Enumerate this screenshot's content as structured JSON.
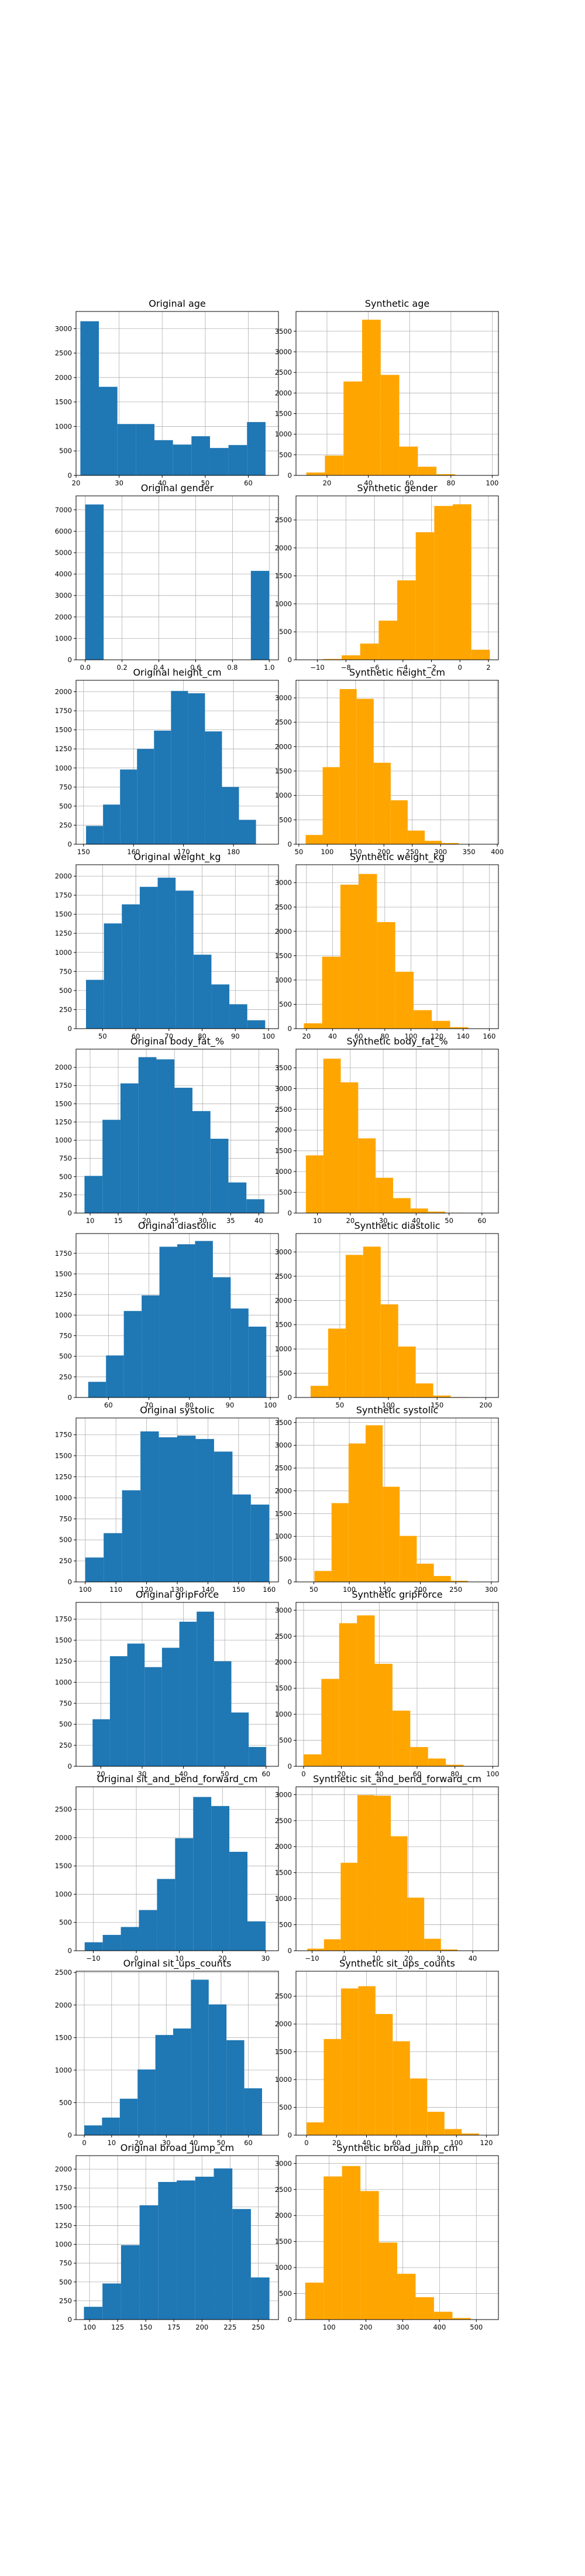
{
  "colors": {
    "original": "#1f77b4",
    "synthetic": "#ffa500"
  },
  "chart_data": [
    {
      "type": "bar",
      "title": "Original age",
      "color": "#1f77b4",
      "xlim": [
        20,
        67
      ],
      "ylim": [
        0,
        3350
      ],
      "xticks": [
        20,
        30,
        40,
        50,
        60
      ],
      "yticks": [
        0,
        500,
        1000,
        1500,
        2000,
        2500,
        3000
      ],
      "bin_edges": [
        21,
        25.3,
        29.6,
        33.9,
        38.2,
        42.5,
        46.8,
        51.1,
        55.4,
        59.7,
        64
      ],
      "values": [
        3150,
        1810,
        1050,
        1050,
        720,
        630,
        800,
        560,
        620,
        1090
      ]
    },
    {
      "type": "bar",
      "title": "Synthetic age",
      "color": "#ffa500",
      "xlim": [
        5,
        103
      ],
      "ylim": [
        0,
        3980
      ],
      "xticks": [
        20,
        40,
        60,
        80,
        100
      ],
      "yticks": [
        0,
        500,
        1000,
        1500,
        2000,
        2500,
        3000,
        3500
      ],
      "bin_edges": [
        10,
        19,
        28,
        37,
        46,
        55,
        64,
        73,
        82,
        91,
        100
      ],
      "values": [
        70,
        480,
        2280,
        3780,
        2440,
        700,
        210,
        30,
        5,
        2
      ]
    },
    {
      "type": "bar",
      "title": "Original gender",
      "color": "#1f77b4",
      "xlim": [
        -0.05,
        1.05
      ],
      "ylim": [
        0,
        7650
      ],
      "xticks": [
        0.0,
        0.2,
        0.4,
        0.6,
        0.8,
        1.0
      ],
      "yticks": [
        0,
        1000,
        2000,
        3000,
        4000,
        5000,
        6000,
        7000
      ],
      "bin_edges": [
        0,
        0.1,
        0.2,
        0.3,
        0.4,
        0.5,
        0.6,
        0.7,
        0.8,
        0.9,
        1.0
      ],
      "values": [
        7250,
        0,
        0,
        0,
        0,
        0,
        0,
        0,
        0,
        4150
      ]
    },
    {
      "type": "bar",
      "title": "Synthetic gender",
      "color": "#ffa500",
      "xlim": [
        -11.5,
        2.7
      ],
      "ylim": [
        0,
        2930
      ],
      "xticks": [
        -10,
        -8,
        -6,
        -4,
        -2,
        0,
        2
      ],
      "yticks": [
        0,
        500,
        1000,
        1500,
        2000,
        2500
      ],
      "bin_edges": [
        -10.9,
        -9.6,
        -8.3,
        -7.0,
        -5.7,
        -4.4,
        -3.1,
        -1.8,
        -0.5,
        0.8,
        2.1
      ],
      "values": [
        2,
        15,
        80,
        290,
        700,
        1420,
        2280,
        2750,
        2780,
        180
      ]
    },
    {
      "type": "bar",
      "title": "Original height_cm",
      "color": "#1f77b4",
      "xlim": [
        148.5,
        189
      ],
      "ylim": [
        0,
        2150
      ],
      "xticks": [
        150,
        160,
        170,
        180
      ],
      "yticks": [
        0,
        250,
        500,
        750,
        1000,
        1250,
        1500,
        1750,
        2000
      ],
      "bin_edges": [
        150.5,
        153.9,
        157.3,
        160.7,
        164.1,
        167.5,
        170.9,
        174.3,
        177.7,
        181.1,
        184.5
      ],
      "values": [
        240,
        520,
        980,
        1250,
        1490,
        2010,
        1980,
        1480,
        750,
        320
      ]
    },
    {
      "type": "bar",
      "title": "Synthetic height_cm",
      "color": "#ffa500",
      "xlim": [
        45,
        402
      ],
      "ylim": [
        0,
        3360
      ],
      "xticks": [
        50,
        100,
        150,
        200,
        250,
        300,
        350,
        400
      ],
      "yticks": [
        0,
        500,
        1000,
        1500,
        2000,
        2500,
        3000
      ],
      "bin_edges": [
        62,
        92,
        122,
        152,
        182,
        212,
        242,
        272,
        302,
        332,
        362
      ],
      "values": [
        190,
        1580,
        3180,
        2980,
        1670,
        900,
        280,
        70,
        25,
        5
      ]
    },
    {
      "type": "bar",
      "title": "Original weight_kg",
      "color": "#1f77b4",
      "xlim": [
        42,
        103
      ],
      "ylim": [
        0,
        2150
      ],
      "xticks": [
        50,
        60,
        70,
        80,
        90,
        100
      ],
      "yticks": [
        0,
        250,
        500,
        750,
        1000,
        1250,
        1500,
        1750,
        2000
      ],
      "bin_edges": [
        45,
        50.4,
        55.8,
        61.2,
        66.6,
        72,
        77.4,
        82.8,
        88.2,
        93.6,
        99
      ],
      "values": [
        640,
        1380,
        1630,
        1860,
        1980,
        1810,
        970,
        580,
        320,
        110
      ]
    },
    {
      "type": "bar",
      "title": "Synthetic weight_kg",
      "color": "#ffa500",
      "xlim": [
        12,
        167
      ],
      "ylim": [
        0,
        3370
      ],
      "xticks": [
        20,
        40,
        60,
        80,
        100,
        120,
        140,
        160
      ],
      "yticks": [
        0,
        500,
        1000,
        1500,
        2000,
        2500,
        3000
      ],
      "bin_edges": [
        18,
        32,
        46,
        60,
        74,
        88,
        102,
        116,
        130,
        144,
        158
      ],
      "values": [
        110,
        1480,
        2960,
        3180,
        2190,
        1170,
        380,
        160,
        30,
        4
      ]
    },
    {
      "type": "bar",
      "title": "Original body_fat_%",
      "color": "#1f77b4",
      "xlim": [
        7.5,
        43.5
      ],
      "ylim": [
        0,
        2250
      ],
      "xticks": [
        10,
        15,
        20,
        25,
        30,
        35,
        40
      ],
      "yticks": [
        0,
        250,
        500,
        750,
        1000,
        1250,
        1500,
        1750,
        2000
      ],
      "bin_edges": [
        9,
        12.2,
        15.4,
        18.6,
        21.8,
        25,
        28.2,
        31.4,
        34.6,
        37.8,
        41
      ],
      "values": [
        510,
        1280,
        1780,
        2140,
        2110,
        1720,
        1400,
        1020,
        420,
        190
      ]
    },
    {
      "type": "bar",
      "title": "Synthetic body_fat_%",
      "color": "#ffa500",
      "xlim": [
        3.5,
        65
      ],
      "ylim": [
        0,
        3950
      ],
      "xticks": [
        10,
        20,
        30,
        40,
        50,
        60
      ],
      "yticks": [
        0,
        500,
        1000,
        1500,
        2000,
        2500,
        3000,
        3500
      ],
      "bin_edges": [
        6.5,
        11.8,
        17.1,
        22.4,
        27.7,
        33,
        38.3,
        43.6,
        48.9,
        54.2,
        59.5
      ],
      "values": [
        1390,
        3720,
        3150,
        1800,
        850,
        360,
        110,
        35,
        8,
        2
      ]
    },
    {
      "type": "bar",
      "title": "Original diastolic",
      "color": "#1f77b4",
      "xlim": [
        52,
        102
      ],
      "ylim": [
        0,
        1990
      ],
      "xticks": [
        60,
        70,
        80,
        90,
        100
      ],
      "yticks": [
        0,
        250,
        500,
        750,
        1000,
        1250,
        1500,
        1750
      ],
      "bin_edges": [
        55,
        59.4,
        63.8,
        68.2,
        72.6,
        77,
        81.4,
        85.8,
        90.2,
        94.6,
        99
      ],
      "values": [
        190,
        510,
        1050,
        1240,
        1830,
        1860,
        1900,
        1460,
        1080,
        860
      ]
    },
    {
      "type": "bar",
      "title": "Synthetic diastolic",
      "color": "#ffa500",
      "xlim": [
        5,
        213
      ],
      "ylim": [
        0,
        3380
      ],
      "xticks": [
        50,
        100,
        150,
        200
      ],
      "yticks": [
        0,
        500,
        1000,
        1500,
        2000,
        2500,
        3000
      ],
      "bin_edges": [
        20,
        38,
        56,
        74,
        92,
        110,
        128,
        146,
        164,
        182,
        200
      ],
      "values": [
        240,
        1420,
        2940,
        3110,
        1920,
        1050,
        290,
        40,
        8,
        2
      ]
    },
    {
      "type": "bar",
      "title": "Original systolic",
      "color": "#1f77b4",
      "xlim": [
        97,
        163
      ],
      "ylim": [
        0,
        1950
      ],
      "xticks": [
        100,
        110,
        120,
        130,
        140,
        150,
        160
      ],
      "yticks": [
        0,
        250,
        500,
        750,
        1000,
        1250,
        1500,
        1750
      ],
      "bin_edges": [
        100,
        106,
        112,
        118,
        124,
        130,
        136,
        142,
        148,
        154,
        160
      ],
      "values": [
        290,
        580,
        1090,
        1790,
        1720,
        1740,
        1700,
        1550,
        1040,
        920
      ]
    },
    {
      "type": "bar",
      "title": "Synthetic systolic",
      "color": "#ffa500",
      "xlim": [
        25,
        310
      ],
      "ylim": [
        0,
        3600
      ],
      "xticks": [
        50,
        100,
        150,
        200,
        250,
        300
      ],
      "yticks": [
        0,
        500,
        1000,
        1500,
        2000,
        2500,
        3000,
        3500
      ],
      "bin_edges": [
        51,
        75,
        99,
        123,
        147,
        171,
        195,
        219,
        243,
        267,
        291
      ],
      "values": [
        240,
        1730,
        3040,
        3440,
        2090,
        1010,
        400,
        130,
        25,
        5
      ]
    },
    {
      "type": "bar",
      "title": "Original gripForce",
      "color": "#1f77b4",
      "xlim": [
        14,
        63
      ],
      "ylim": [
        0,
        1950
      ],
      "xticks": [
        20,
        30,
        40,
        50,
        60
      ],
      "yticks": [
        0,
        250,
        500,
        750,
        1000,
        1250,
        1500,
        1750
      ],
      "bin_edges": [
        18,
        22.2,
        26.4,
        30.6,
        34.8,
        39,
        43.2,
        47.4,
        51.6,
        55.8,
        60
      ],
      "values": [
        560,
        1310,
        1460,
        1180,
        1410,
        1720,
        1840,
        1250,
        640,
        230
      ]
    },
    {
      "type": "bar",
      "title": "Synthetic gripForce",
      "color": "#ffa500",
      "xlim": [
        -4,
        103
      ],
      "ylim": [
        0,
        3150
      ],
      "xticks": [
        0,
        20,
        40,
        60,
        80,
        100
      ],
      "yticks": [
        0,
        500,
        1000,
        1500,
        2000,
        2500,
        3000
      ],
      "bin_edges": [
        0,
        9.4,
        18.8,
        28.2,
        37.6,
        47,
        56.4,
        65.8,
        75.2,
        84.6,
        94
      ],
      "values": [
        230,
        1680,
        2750,
        2900,
        1970,
        1070,
        370,
        150,
        30,
        4
      ]
    },
    {
      "type": "bar",
      "title": "Original sit_and_bend_forward_cm",
      "color": "#1f77b4",
      "xlim": [
        -14,
        33
      ],
      "ylim": [
        0,
        2900
      ],
      "xticks": [
        -10,
        0,
        10,
        20,
        30
      ],
      "yticks": [
        0,
        500,
        1000,
        1500,
        2000,
        2500
      ],
      "bin_edges": [
        -12,
        -7.8,
        -3.6,
        0.6,
        4.8,
        9,
        13.2,
        17.4,
        21.6,
        25.8,
        30
      ],
      "values": [
        150,
        280,
        420,
        720,
        1270,
        1990,
        2720,
        2560,
        1750,
        520
      ]
    },
    {
      "type": "bar",
      "title": "Synthetic sit_and_bend_forward_cm",
      "color": "#ffa500",
      "xlim": [
        -15,
        48
      ],
      "ylim": [
        0,
        3150
      ],
      "xticks": [
        -10,
        0,
        10,
        20,
        30,
        40
      ],
      "yticks": [
        0,
        500,
        1000,
        1500,
        2000,
        2500,
        3000
      ],
      "bin_edges": [
        -11.5,
        -6.3,
        -1.1,
        4.1,
        9.3,
        14.5,
        19.7,
        24.9,
        30.1,
        35.3,
        40.5
      ],
      "values": [
        40,
        220,
        1690,
        2990,
        2980,
        2200,
        1020,
        230,
        25,
        4
      ]
    },
    {
      "type": "bar",
      "title": "Original sit_ups_counts",
      "color": "#1f77b4",
      "xlim": [
        -3,
        71
      ],
      "ylim": [
        0,
        2520
      ],
      "xticks": [
        0,
        10,
        20,
        30,
        40,
        50,
        60
      ],
      "yticks": [
        0,
        500,
        1000,
        1500,
        2000,
        2500
      ],
      "bin_edges": [
        0,
        6.5,
        13,
        19.5,
        26,
        32.5,
        39,
        45.5,
        52,
        58.5,
        65
      ],
      "values": [
        150,
        270,
        560,
        1010,
        1540,
        1640,
        2390,
        2010,
        1460,
        720
      ]
    },
    {
      "type": "bar",
      "title": "Synthetic sit_ups_counts",
      "color": "#ffa500",
      "xlim": [
        -7,
        128
      ],
      "ylim": [
        0,
        2950
      ],
      "xticks": [
        0,
        20,
        40,
        60,
        80,
        100,
        120
      ],
      "yticks": [
        0,
        500,
        1000,
        1500,
        2000,
        2500
      ],
      "bin_edges": [
        0,
        11.5,
        23,
        34.5,
        46,
        57.5,
        69,
        80.5,
        92,
        103.5,
        115
      ],
      "values": [
        230,
        1730,
        2640,
        2680,
        2180,
        1690,
        1020,
        420,
        110,
        30
      ]
    },
    {
      "type": "bar",
      "title": "Original broad_jump_cm",
      "color": "#1f77b4",
      "xlim": [
        88,
        268
      ],
      "ylim": [
        0,
        2180
      ],
      "xticks": [
        100,
        125,
        150,
        175,
        200,
        225,
        250
      ],
      "yticks": [
        0,
        250,
        500,
        750,
        1000,
        1250,
        1500,
        1750,
        2000
      ],
      "bin_edges": [
        95,
        111.5,
        128,
        144.5,
        161,
        177.5,
        194,
        210.5,
        227,
        243.5,
        260
      ],
      "values": [
        170,
        480,
        990,
        1520,
        1830,
        1850,
        1900,
        2010,
        1470,
        560
      ]
    },
    {
      "type": "bar",
      "title": "Synthetic broad_jump_cm",
      "color": "#ffa500",
      "xlim": [
        10,
        560
      ],
      "ylim": [
        0,
        3150
      ],
      "xticks": [
        100,
        200,
        300,
        400,
        500
      ],
      "yticks": [
        0,
        500,
        1000,
        1500,
        2000,
        2500,
        3000
      ],
      "bin_edges": [
        35,
        85,
        135,
        185,
        235,
        285,
        335,
        385,
        435,
        485,
        535
      ],
      "values": [
        710,
        2750,
        2950,
        2470,
        1480,
        880,
        430,
        150,
        30,
        4
      ]
    }
  ]
}
